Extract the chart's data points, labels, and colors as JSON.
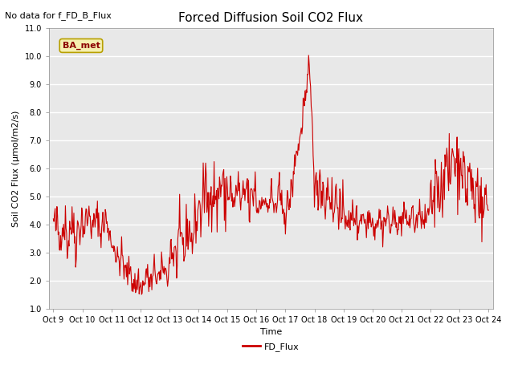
{
  "title": "Forced Diffusion Soil CO2 Flux",
  "xlabel": "Time",
  "ylabel": "Soil CO2 Flux (μmol/m2/s)",
  "no_data_text": "No data for f_FD_B_Flux",
  "legend_label": "FD_Flux",
  "line_color": "#cc0000",
  "ylim": [
    1.0,
    11.0
  ],
  "yticks": [
    1.0,
    2.0,
    3.0,
    4.0,
    5.0,
    6.0,
    7.0,
    8.0,
    9.0,
    10.0,
    11.0
  ],
  "bg_color": "#e8e8e8",
  "box_label": "BA_met",
  "x_tick_labels": [
    "Oct 9",
    "Oct 10",
    "Oct 11",
    "Oct 12",
    "Oct 13",
    "Oct 14",
    "Oct 15",
    "Oct 16",
    "Oct 17",
    "Oct 18",
    "Oct 19",
    "Oct 20",
    "Oct 21",
    "Oct 22",
    "Oct 23",
    "Oct 24"
  ],
  "x_tick_positions": [
    0,
    1,
    2,
    3,
    4,
    5,
    6,
    7,
    8,
    9,
    10,
    11,
    12,
    13,
    14,
    15
  ],
  "seed": 42,
  "segments": [
    {
      "start": 0.0,
      "end": 1.0,
      "base": 3.8,
      "amp": 0.8,
      "trend": 0.0
    },
    {
      "start": 1.0,
      "end": 2.0,
      "base": 4.2,
      "amp": 0.6,
      "trend": -0.3
    },
    {
      "start": 2.0,
      "end": 3.0,
      "base": 3.2,
      "amp": 0.5,
      "trend": -1.5
    },
    {
      "start": 3.0,
      "end": 4.0,
      "base": 1.9,
      "amp": 0.5,
      "trend": 0.5
    },
    {
      "start": 4.0,
      "end": 5.0,
      "base": 2.8,
      "amp": 0.8,
      "trend": 1.2
    },
    {
      "start": 5.0,
      "end": 6.0,
      "base": 4.8,
      "amp": 1.0,
      "trend": 0.5
    },
    {
      "start": 6.0,
      "end": 7.0,
      "base": 5.0,
      "amp": 0.8,
      "trend": 0.0
    },
    {
      "start": 7.0,
      "end": 8.0,
      "base": 4.8,
      "amp": 0.6,
      "trend": 0.0
    },
    {
      "start": 8.0,
      "end": 8.8,
      "base": 4.0,
      "amp": 0.5,
      "trend": 5.0
    },
    {
      "start": 8.8,
      "end": 9.0,
      "base": 10.2,
      "amp": 0.3,
      "trend": -4.0
    },
    {
      "start": 9.0,
      "end": 10.0,
      "base": 5.5,
      "amp": 0.8,
      "trend": -1.0
    },
    {
      "start": 10.0,
      "end": 11.0,
      "base": 4.2,
      "amp": 0.6,
      "trend": 0.0
    },
    {
      "start": 11.0,
      "end": 12.0,
      "base": 4.1,
      "amp": 0.5,
      "trend": 0.0
    },
    {
      "start": 12.0,
      "end": 13.0,
      "base": 4.2,
      "amp": 0.5,
      "trend": 0.0
    },
    {
      "start": 13.0,
      "end": 14.0,
      "base": 5.0,
      "amp": 1.2,
      "trend": 1.5
    },
    {
      "start": 14.0,
      "end": 15.0,
      "base": 6.0,
      "amp": 1.0,
      "trend": -1.5
    }
  ],
  "n_points_per_unit": 48,
  "title_fontsize": 11,
  "tick_fontsize": 7,
  "label_fontsize": 8,
  "ylabel_fontsize": 8
}
